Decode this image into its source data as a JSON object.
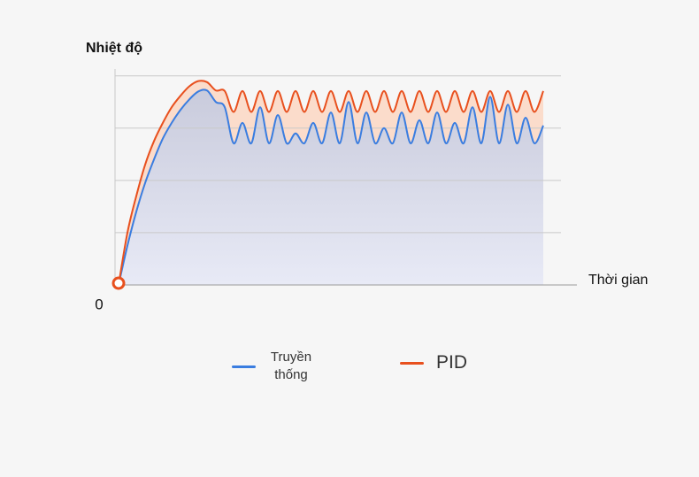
{
  "chart_data": {
    "type": "line",
    "y_label": "Nhiệt độ",
    "x_label": "Thời gian",
    "xlim": [
      0,
      104
    ],
    "ylim": [
      0,
      4.3
    ],
    "yticks": [
      0
    ],
    "gridlines": [
      1,
      2,
      3,
      4
    ],
    "x": [
      0,
      2,
      4,
      6,
      8,
      10,
      12,
      14,
      16,
      18,
      20,
      22,
      24,
      26,
      28,
      30,
      32,
      34,
      36,
      38,
      40,
      42,
      44,
      46,
      48,
      50,
      52,
      54,
      56,
      58,
      60,
      62,
      64,
      66,
      68,
      70,
      72,
      74,
      76,
      78,
      80,
      82,
      84,
      86,
      88,
      90,
      92,
      94,
      96
    ],
    "series": [
      {
        "name": "Truyền thống",
        "color": "#3a7de0",
        "values": [
          0,
          0.75,
          1.4,
          1.95,
          2.4,
          2.8,
          3.1,
          3.35,
          3.55,
          3.7,
          3.72,
          3.5,
          3.4,
          2.71,
          3.1,
          2.71,
          3.4,
          2.71,
          3.25,
          2.71,
          2.9,
          2.71,
          3.1,
          2.71,
          3.3,
          2.71,
          3.5,
          2.71,
          3.3,
          2.71,
          3.0,
          2.71,
          3.3,
          2.71,
          3.15,
          2.71,
          3.3,
          2.71,
          3.1,
          2.71,
          3.4,
          2.71,
          3.6,
          2.71,
          3.45,
          2.71,
          3.2,
          2.71,
          3.05
        ]
      },
      {
        "name": "PID",
        "color": "#e8501e",
        "values": [
          0,
          1.0,
          1.7,
          2.3,
          2.75,
          3.1,
          3.4,
          3.62,
          3.8,
          3.9,
          3.88,
          3.72,
          3.71,
          3.31,
          3.71,
          3.31,
          3.71,
          3.31,
          3.71,
          3.31,
          3.71,
          3.31,
          3.71,
          3.31,
          3.71,
          3.31,
          3.71,
          3.31,
          3.71,
          3.31,
          3.71,
          3.31,
          3.71,
          3.31,
          3.71,
          3.31,
          3.71,
          3.31,
          3.71,
          3.31,
          3.71,
          3.31,
          3.71,
          3.31,
          3.71,
          3.31,
          3.71,
          3.31,
          3.71
        ]
      }
    ]
  }
}
